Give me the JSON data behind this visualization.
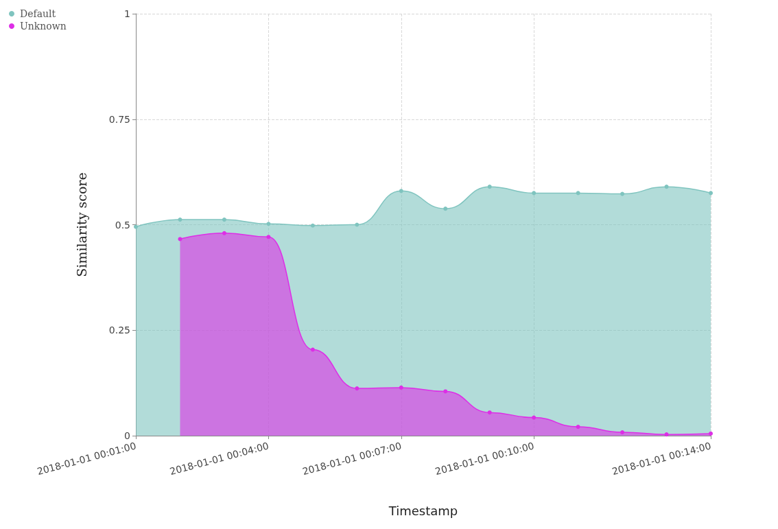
{
  "chart_data": {
    "type": "area",
    "xlabel": "Timestamp",
    "ylabel": "Similarity score",
    "x": [
      "2018-01-01T00:01",
      "2018-01-01T00:02",
      "2018-01-01T00:03",
      "2018-01-01T00:04",
      "2018-01-01T00:05",
      "2018-01-01T00:06",
      "2018-01-01T00:07",
      "2018-01-01T00:08",
      "2018-01-01T00:09",
      "2018-01-01T00:10",
      "2018-01-01T00:11",
      "2018-01-01T00:12",
      "2018-01-01T00:13",
      "2018-01-01T00:14"
    ],
    "series": [
      {
        "name": "Default",
        "color": "#7fc4bf",
        "values": [
          0.495,
          0.512,
          0.512,
          0.502,
          0.498,
          0.5,
          0.58,
          0.538,
          0.59,
          0.575,
          0.575,
          0.573,
          0.59,
          0.575
        ]
      },
      {
        "name": "Unknown",
        "color": "#dd2ee6",
        "values": [
          null,
          0.466,
          0.48,
          0.471,
          0.204,
          0.112,
          0.114,
          0.105,
          0.055,
          0.043,
          0.021,
          0.008,
          0.003,
          0.005
        ]
      }
    ],
    "xlim": [
      "2018-01-01T00:01",
      "2018-01-01T00:14"
    ],
    "xticks": [
      {
        "value": "2018-01-01T00:01",
        "label": "2018-01-01 00:01:00"
      },
      {
        "value": "2018-01-01T00:04",
        "label": "2018-01-01 00:04:00"
      },
      {
        "value": "2018-01-01T00:07",
        "label": "2018-01-01 00:07:00"
      },
      {
        "value": "2018-01-01T00:10",
        "label": "2018-01-01 00:10:00"
      },
      {
        "value": "2018-01-01T00:14",
        "label": "2018-01-01 00:14:00"
      }
    ],
    "ylim": [
      0,
      1
    ],
    "yticks": [
      0,
      0.25,
      0.5,
      0.75,
      1
    ],
    "grid": true,
    "legend": "top left",
    "marker": "circle",
    "line_style": "solid"
  }
}
